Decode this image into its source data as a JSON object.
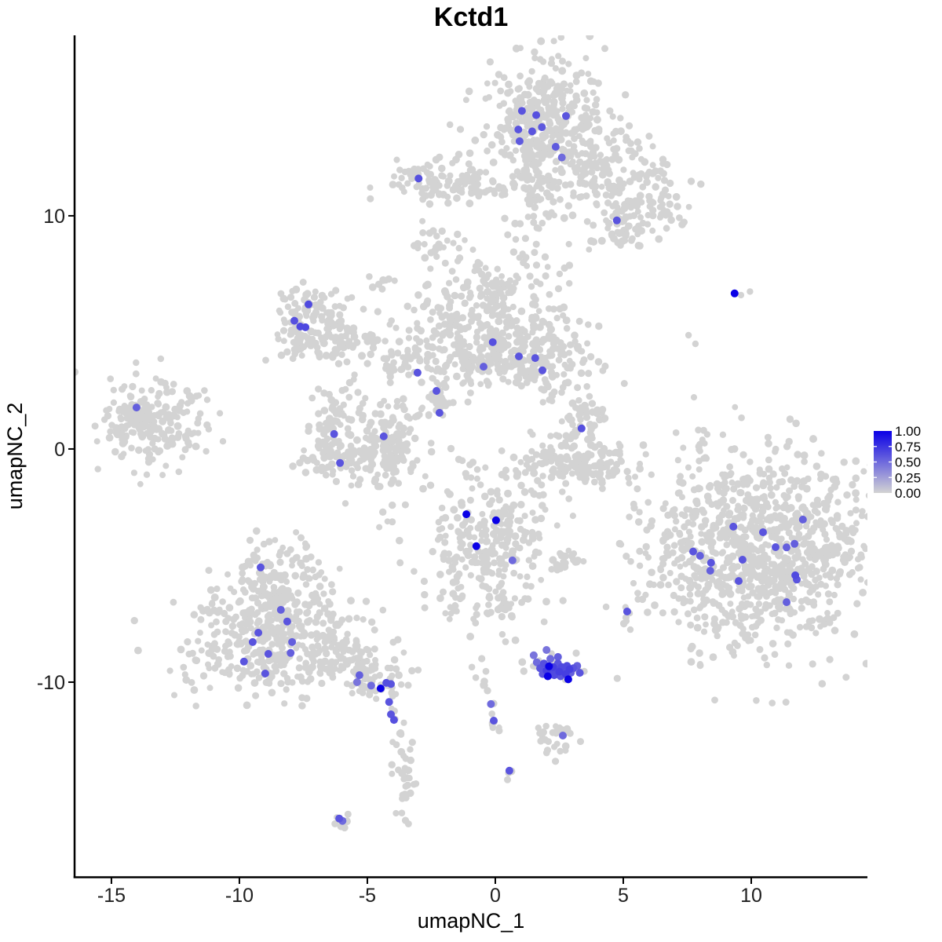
{
  "chart_data": {
    "type": "scatter",
    "title": "Kctd1",
    "xlabel": "umapNC_1",
    "ylabel": "umapNC_2",
    "xlim": [
      -16.44,
      14.54
    ],
    "ylim": [
      -18.35,
      17.74
    ],
    "x_ticks": [
      -15,
      -10,
      -5,
      0,
      5,
      10
    ],
    "y_ticks": [
      10,
      0,
      -10
    ],
    "grid": false,
    "background_color": "#FFFFFF",
    "axis_color": "#000000",
    "gray_point_color": "#D3D3D3",
    "high_color": "#0A00E6",
    "legend": {
      "position": "right",
      "labels": [
        "1.00",
        "0.75",
        "0.50",
        "0.25",
        "0.00"
      ],
      "values": [
        1.0,
        0.75,
        0.5,
        0.25,
        0.0
      ],
      "low_color": "#D3D3D3",
      "high_color": "#0A00E6"
    },
    "_cluster_format": "[cx, cy, sx, sy, n] gaussian blob of unexpressing (gray) cells",
    "clusters": [
      [
        1.9,
        13.9,
        1.35,
        1.5,
        380
      ],
      [
        4.3,
        12.2,
        1.25,
        0.85,
        110
      ],
      [
        5.6,
        10.5,
        1.05,
        0.8,
        110
      ],
      [
        4.9,
        9.35,
        0.55,
        0.5,
        30
      ],
      [
        -2.4,
        11.55,
        0.95,
        0.5,
        95
      ],
      [
        -2.75,
        8.55,
        0.35,
        0.4,
        14
      ],
      [
        -4.5,
        7.15,
        0.3,
        0.25,
        8
      ],
      [
        -7.15,
        6.1,
        0.75,
        0.35,
        45
      ],
      [
        -7.8,
        5.3,
        0.3,
        0.7,
        35
      ],
      [
        -6.9,
        4.5,
        0.85,
        0.4,
        55
      ],
      [
        -6.2,
        5.2,
        0.3,
        0.6,
        30
      ],
      [
        -4.7,
        4.6,
        1.1,
        0.7,
        40
      ],
      [
        -2.9,
        3.8,
        0.5,
        0.55,
        18
      ],
      [
        -0.7,
        5.5,
        1.2,
        0.95,
        180
      ],
      [
        1.5,
        4.2,
        1.15,
        0.95,
        200
      ],
      [
        -0.9,
        3.6,
        1.5,
        0.5,
        90
      ],
      [
        0.0,
        6.7,
        0.5,
        0.45,
        30
      ],
      [
        -2.25,
        2.2,
        0.28,
        0.6,
        26
      ],
      [
        3.35,
        1.05,
        0.5,
        0.75,
        55
      ],
      [
        3.3,
        -0.75,
        1.35,
        0.45,
        120
      ],
      [
        2.1,
        -0.1,
        0.3,
        0.35,
        18
      ],
      [
        4.55,
        -0.35,
        0.3,
        0.4,
        18
      ],
      [
        -13.5,
        1.1,
        1.0,
        0.95,
        190
      ],
      [
        -13.95,
        1.45,
        0.35,
        0.3,
        15
      ],
      [
        -11.9,
        0.6,
        0.5,
        0.45,
        10
      ],
      [
        -6.45,
        0.6,
        0.42,
        0.9,
        65
      ],
      [
        -5.1,
        -0.4,
        1.3,
        0.5,
        120
      ],
      [
        -3.9,
        0.4,
        0.5,
        0.8,
        75
      ],
      [
        -5.3,
        1.7,
        0.9,
        0.5,
        25
      ],
      [
        -0.35,
        -4.0,
        1.35,
        1.55,
        290
      ],
      [
        2.75,
        -4.85,
        0.42,
        0.25,
        20
      ],
      [
        -8.5,
        -5.5,
        0.95,
        0.8,
        120
      ],
      [
        -8.8,
        -7.2,
        1.55,
        0.8,
        190
      ],
      [
        -8.8,
        -9.0,
        1.95,
        0.8,
        230
      ],
      [
        -4.4,
        -9.95,
        0.55,
        0.5,
        45
      ],
      [
        -3.55,
        -14.2,
        0.28,
        0.95,
        32
      ],
      [
        -6.05,
        -15.9,
        0.22,
        0.18,
        9
      ],
      [
        2.3,
        -12.4,
        0.52,
        0.42,
        26
      ],
      [
        0.55,
        -13.9,
        0.12,
        0.15,
        3
      ],
      [
        2.35,
        -9.4,
        0.75,
        0.3,
        22
      ],
      [
        10.5,
        -4.4,
        2.3,
        2.0,
        950
      ],
      [
        7.85,
        -4.8,
        0.4,
        0.85,
        40
      ],
      [
        10.3,
        -1.2,
        1.2,
        0.4,
        15
      ]
    ],
    "_strand_format": "[x1, y1, x2, y2, jitter, n] sparse trail of gray cells",
    "strands": [
      [
        1.35,
        12.2,
        1.6,
        9.9,
        0.35,
        40
      ],
      [
        -1.5,
        11.35,
        0.3,
        11.15,
        0.25,
        30
      ],
      [
        1.0,
        9.0,
        1.8,
        7.0,
        0.55,
        30
      ],
      [
        -2.0,
        9.3,
        -0.6,
        6.7,
        0.45,
        22
      ],
      [
        -4.2,
        3.6,
        -2.6,
        4.3,
        0.3,
        25
      ],
      [
        2.0,
        2.9,
        2.2,
        2.1,
        0.15,
        6
      ],
      [
        -3.4,
        1.3,
        -2.4,
        1.8,
        0.2,
        12
      ],
      [
        -1.3,
        -5.7,
        -1.75,
        -7.3,
        0.15,
        14
      ],
      [
        0.3,
        -5.9,
        0.45,
        -6.9,
        0.1,
        8
      ],
      [
        -6.7,
        -8.2,
        -4.9,
        -9.6,
        0.35,
        55
      ],
      [
        -4.1,
        -10.9,
        -3.7,
        -12.3,
        0.12,
        8
      ],
      [
        -0.9,
        -9.0,
        -0.3,
        -10.6,
        0.12,
        9
      ],
      [
        -0.25,
        -10.7,
        0.0,
        -12.2,
        0.1,
        8
      ],
      [
        9.5,
        -7.3,
        10.2,
        -8.4,
        0.4,
        14
      ],
      [
        8.1,
        0.9,
        8.0,
        -0.6,
        0.12,
        12
      ],
      [
        5.1,
        -7.15,
        5.2,
        -7.6,
        0.08,
        5
      ]
    ],
    "_single_format": "[x, y] isolated gray cells",
    "singles": [
      [
        7.55,
        4.88
      ],
      [
        7.82,
        4.51
      ],
      [
        8.0,
        -1.7
      ],
      [
        9.6,
        6.6
      ],
      [
        9.95,
        6.75
      ],
      [
        -11.3,
        -0.1
      ],
      [
        -11.6,
        1.3
      ]
    ],
    "_point_format": "[x, y, expression_value_0_to_1] Kctd1-expressing cells",
    "highlight_points": [
      [
        1.04,
        14.5,
        0.6
      ],
      [
        1.6,
        14.32,
        0.62
      ],
      [
        1.82,
        13.8,
        0.58
      ],
      [
        1.44,
        13.62,
        0.6
      ],
      [
        0.9,
        13.7,
        0.6
      ],
      [
        0.95,
        13.2,
        0.58
      ],
      [
        2.76,
        14.28,
        0.6
      ],
      [
        2.36,
        12.96,
        0.58
      ],
      [
        2.6,
        12.5,
        0.5
      ],
      [
        4.75,
        9.8,
        0.6
      ],
      [
        -3.0,
        11.6,
        0.62
      ],
      [
        -7.3,
        6.2,
        0.65
      ],
      [
        -7.85,
        5.5,
        0.62
      ],
      [
        -7.62,
        5.25,
        0.66
      ],
      [
        -7.42,
        5.22,
        0.66
      ],
      [
        -0.1,
        4.58,
        0.62
      ],
      [
        0.92,
        3.97,
        0.6
      ],
      [
        1.56,
        3.9,
        0.6
      ],
      [
        -0.46,
        3.53,
        0.55
      ],
      [
        1.84,
        3.37,
        0.6
      ],
      [
        -3.04,
        3.27,
        0.6
      ],
      [
        -2.3,
        2.49,
        0.6
      ],
      [
        -2.18,
        1.55,
        0.6
      ],
      [
        3.37,
        0.88,
        0.62
      ],
      [
        -14.02,
        1.78,
        0.55
      ],
      [
        -6.3,
        0.64,
        0.6
      ],
      [
        -4.36,
        0.54,
        0.6
      ],
      [
        -6.07,
        -0.6,
        0.6
      ],
      [
        -1.13,
        -2.8,
        1.0
      ],
      [
        0.03,
        -3.06,
        1.0
      ],
      [
        -0.74,
        -4.17,
        1.0
      ],
      [
        0.67,
        -4.78,
        0.5
      ],
      [
        -9.17,
        -5.08,
        0.6
      ],
      [
        -8.38,
        -6.9,
        0.55
      ],
      [
        -8.13,
        -7.4,
        0.6
      ],
      [
        -9.26,
        -7.88,
        0.6
      ],
      [
        -9.48,
        -8.28,
        0.6
      ],
      [
        -7.94,
        -8.28,
        0.55
      ],
      [
        -8.87,
        -8.79,
        0.6
      ],
      [
        -8.0,
        -8.75,
        0.55
      ],
      [
        -9.82,
        -9.12,
        0.6
      ],
      [
        -8.99,
        -9.63,
        0.6
      ],
      [
        -5.31,
        -9.7,
        0.55
      ],
      [
        -4.48,
        -10.27,
        1.0
      ],
      [
        -4.26,
        -10.03,
        0.62
      ],
      [
        -4.08,
        -10.08,
        0.6
      ],
      [
        -4.85,
        -10.15,
        0.5
      ],
      [
        -5.4,
        -10.0,
        0.45
      ],
      [
        -4.15,
        -10.85,
        0.6
      ],
      [
        -4.08,
        -11.38,
        0.6
      ],
      [
        -3.96,
        -11.62,
        0.62
      ],
      [
        -6.1,
        -15.85,
        0.6
      ],
      [
        -5.97,
        -15.95,
        0.5
      ],
      [
        -0.17,
        -10.94,
        0.5
      ],
      [
        -0.06,
        -11.65,
        0.6
      ],
      [
        2.64,
        -12.29,
        0.5
      ],
      [
        0.55,
        -13.8,
        0.6
      ],
      [
        5.15,
        -6.97,
        0.6
      ],
      [
        1.75,
        -9.4,
        0.6
      ],
      [
        1.9,
        -9.2,
        0.62
      ],
      [
        2.0,
        -9.5,
        0.7
      ],
      [
        2.1,
        -9.32,
        1.0
      ],
      [
        2.2,
        -9.6,
        0.65
      ],
      [
        2.25,
        -9.35,
        0.7
      ],
      [
        2.35,
        -9.45,
        0.65
      ],
      [
        2.45,
        -9.2,
        0.6
      ],
      [
        2.5,
        -9.55,
        0.7
      ],
      [
        2.6,
        -9.35,
        0.65
      ],
      [
        2.7,
        -9.5,
        0.6
      ],
      [
        2.8,
        -9.3,
        0.65
      ],
      [
        2.9,
        -9.45,
        0.7
      ],
      [
        3.05,
        -9.4,
        0.6
      ],
      [
        3.2,
        -9.3,
        0.55
      ],
      [
        1.85,
        -9.65,
        0.6
      ],
      [
        2.05,
        -9.75,
        1.0
      ],
      [
        2.3,
        -9.7,
        0.65
      ],
      [
        2.55,
        -9.75,
        0.6
      ],
      [
        2.75,
        -9.65,
        0.7
      ],
      [
        2.95,
        -9.6,
        0.55
      ],
      [
        2.15,
        -9.0,
        0.5
      ],
      [
        2.45,
        -8.92,
        0.55
      ],
      [
        1.62,
        -9.15,
        0.5
      ],
      [
        3.3,
        -9.6,
        0.6
      ],
      [
        2.85,
        -9.88,
        1.0
      ],
      [
        2.0,
        -8.62,
        0.45
      ],
      [
        1.5,
        -8.85,
        0.45
      ],
      [
        7.73,
        -4.4,
        0.6
      ],
      [
        8.0,
        -4.58,
        0.55
      ],
      [
        8.43,
        -4.88,
        0.6
      ],
      [
        8.4,
        -5.22,
        0.55
      ],
      [
        9.3,
        -3.33,
        0.6
      ],
      [
        10.46,
        -3.57,
        0.6
      ],
      [
        12.02,
        -3.03,
        0.55
      ],
      [
        10.95,
        -4.21,
        0.6
      ],
      [
        11.38,
        -4.22,
        0.55
      ],
      [
        11.69,
        -4.07,
        0.55
      ],
      [
        9.66,
        -4.75,
        0.6
      ],
      [
        9.51,
        -5.66,
        0.6
      ],
      [
        11.72,
        -5.42,
        0.65
      ],
      [
        11.78,
        -5.6,
        0.6
      ],
      [
        11.38,
        -6.57,
        0.55
      ],
      [
        9.35,
        6.67,
        1.0
      ]
    ]
  }
}
